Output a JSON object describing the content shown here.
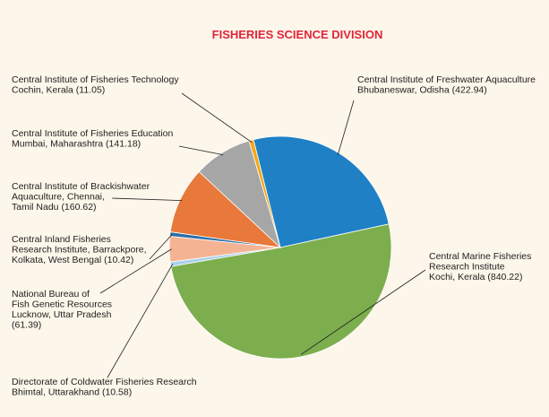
{
  "chart_data": {
    "type": "pie",
    "title": "FISHERIES SCIENCE DIVISION",
    "slices": [
      {
        "lines": [
          "Central Institute of Freshwater Aquaculture",
          "Bhubaneswar, Odisha (422.94)"
        ],
        "value": 422.94,
        "color": "#1f80c6"
      },
      {
        "lines": [
          "Central Marine Fisheries",
          "Research Institute",
          "Kochi, Kerala (840.22)"
        ],
        "value": 840.22,
        "color": "#7cae4e"
      },
      {
        "lines": [
          "Directorate of Coldwater Fisheries Research",
          "Bhimtal, Uttarakhand (10.58)"
        ],
        "value": 10.58,
        "color": "#a9d0ec"
      },
      {
        "lines": [
          "National Bureau of",
          "Fish Genetic Resources",
          "Lucknow, Uttar Pradesh",
          "(61.39)"
        ],
        "value": 61.39,
        "color": "#f4b493"
      },
      {
        "lines": [
          "Central Inland Fisheries",
          "Research Institute, Barrackpore,",
          "Kolkata, West Bengal (10.42)"
        ],
        "value": 10.42,
        "color": "#2d6ea8"
      },
      {
        "lines": [
          "Central Institute of Brackishwater",
          "Aquaculture, Chennai,",
          "Tamil Nadu (160.62)"
        ],
        "value": 160.62,
        "color": "#e8793a"
      },
      {
        "lines": [
          "Central Institute of Fisheries Education",
          "Mumbai, Maharashtra (141.18)"
        ],
        "value": 141.18,
        "color": "#a6a6a6"
      },
      {
        "lines": [
          "Central Institute of Fisheries Technology",
          "Cochin, Kerala (11.05)"
        ],
        "value": 11.05,
        "color": "#f2a81d"
      }
    ]
  }
}
